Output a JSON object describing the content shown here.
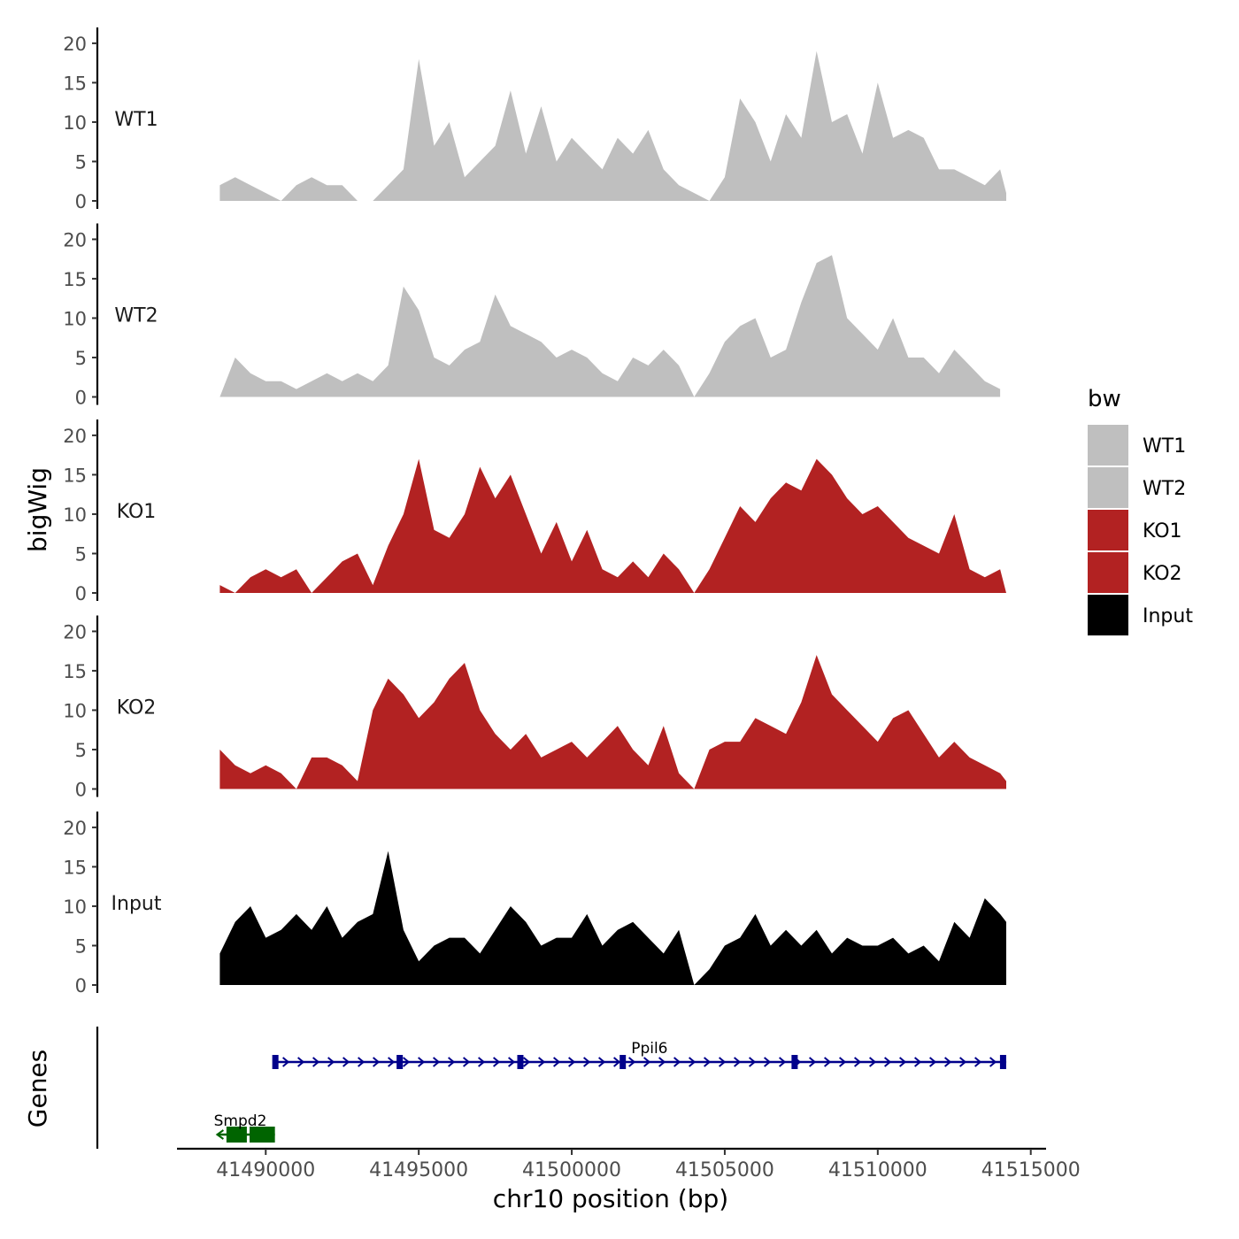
{
  "chart_data": {
    "type": "area",
    "ylabel": "bigWig",
    "xlabel": "chr10 position (bp)",
    "gene_track_label": "Genes",
    "xlim": [
      41487100,
      41515500
    ],
    "ylim": [
      0,
      21
    ],
    "y_ticks": [
      0,
      5,
      10,
      15,
      20
    ],
    "x_ticks": [
      41490000,
      41495000,
      41500000,
      41505000,
      41510000,
      41515000
    ],
    "x_tick_labels": [
      "41490000",
      "41495000",
      "41500000",
      "41505000",
      "41510000",
      "41515000"
    ],
    "legend": {
      "title": "bw",
      "position": "right",
      "entries": [
        {
          "label": "WT1",
          "color": "#bfbfbf"
        },
        {
          "label": "WT2",
          "color": "#bfbfbf"
        },
        {
          "label": "KO1",
          "color": "#b22222"
        },
        {
          "label": "KO2",
          "color": "#b22222"
        },
        {
          "label": "Input",
          "color": "#000000"
        }
      ]
    },
    "series": [
      {
        "name": "WT1",
        "color": "#bfbfbf",
        "x": [
          41488500,
          41489000,
          41489500,
          41490000,
          41490500,
          41491000,
          41491500,
          41492000,
          41492500,
          41493000,
          41493500,
          41494000,
          41494500,
          41495000,
          41495500,
          41496000,
          41496500,
          41497000,
          41497500,
          41498000,
          41498500,
          41499000,
          41499500,
          41500000,
          41500500,
          41501000,
          41501500,
          41502000,
          41502500,
          41503000,
          41503500,
          41504000,
          41504500,
          41505000,
          41505500,
          41506000,
          41506500,
          41507000,
          41507500,
          41508000,
          41508500,
          41509000,
          41509500,
          41510000,
          41510500,
          41511000,
          41511500,
          41512000,
          41512500,
          41513000,
          41513500,
          41514000,
          41514200
        ],
        "values": [
          2,
          3,
          2,
          1,
          0,
          2,
          3,
          2,
          2,
          0,
          0,
          2,
          4,
          18,
          7,
          10,
          3,
          5,
          7,
          14,
          6,
          12,
          5,
          8,
          6,
          4,
          8,
          6,
          9,
          4,
          2,
          1,
          0,
          3,
          13,
          10,
          5,
          11,
          8,
          19,
          10,
          11,
          6,
          15,
          8,
          9,
          8,
          4,
          4,
          3,
          2,
          4,
          1
        ]
      },
      {
        "name": "WT2",
        "color": "#bfbfbf",
        "x": [
          41488500,
          41489000,
          41489500,
          41490000,
          41490500,
          41491000,
          41491500,
          41492000,
          41492500,
          41493000,
          41493500,
          41494000,
          41494500,
          41495000,
          41495500,
          41496000,
          41496500,
          41497000,
          41497500,
          41498000,
          41498500,
          41499000,
          41499500,
          41500000,
          41500500,
          41501000,
          41501500,
          41502000,
          41502500,
          41503000,
          41503500,
          41504000,
          41504500,
          41505000,
          41505500,
          41506000,
          41506500,
          41507000,
          41507500,
          41508000,
          41508500,
          41509000,
          41509500,
          41510000,
          41510500,
          41511000,
          41511500,
          41512000,
          41512500,
          41513000,
          41513500,
          41514000
        ],
        "values": [
          0,
          5,
          3,
          2,
          2,
          1,
          2,
          3,
          2,
          3,
          2,
          4,
          14,
          11,
          5,
          4,
          6,
          7,
          13,
          9,
          8,
          7,
          5,
          6,
          5,
          3,
          2,
          5,
          4,
          6,
          4,
          0,
          3,
          7,
          9,
          10,
          5,
          6,
          12,
          17,
          18,
          10,
          8,
          6,
          10,
          5,
          5,
          3,
          6,
          4,
          2,
          1
        ]
      },
      {
        "name": "KO1",
        "color": "#b22222",
        "x": [
          41488500,
          41489000,
          41489500,
          41490000,
          41490500,
          41491000,
          41491500,
          41492000,
          41492500,
          41493000,
          41493500,
          41494000,
          41494500,
          41495000,
          41495500,
          41496000,
          41496500,
          41497000,
          41497500,
          41498000,
          41498500,
          41499000,
          41499500,
          41500000,
          41500500,
          41501000,
          41501500,
          41502000,
          41502500,
          41503000,
          41503500,
          41504000,
          41504500,
          41505000,
          41505500,
          41506000,
          41506500,
          41507000,
          41507500,
          41508000,
          41508500,
          41509000,
          41509500,
          41510000,
          41510500,
          41511000,
          41511500,
          41512000,
          41512500,
          41513000,
          41513500,
          41514000,
          41514200
        ],
        "values": [
          1,
          0,
          2,
          3,
          2,
          3,
          0,
          2,
          4,
          5,
          1,
          6,
          10,
          17,
          8,
          7,
          10,
          16,
          12,
          15,
          10,
          5,
          9,
          4,
          8,
          3,
          2,
          4,
          2,
          5,
          3,
          0,
          3,
          7,
          11,
          9,
          12,
          14,
          13,
          17,
          15,
          12,
          10,
          11,
          9,
          7,
          6,
          5,
          10,
          3,
          2,
          3,
          0
        ]
      },
      {
        "name": "KO2",
        "color": "#b22222",
        "x": [
          41488500,
          41489000,
          41489500,
          41490000,
          41490500,
          41491000,
          41491500,
          41492000,
          41492500,
          41493000,
          41493500,
          41494000,
          41494500,
          41495000,
          41495500,
          41496000,
          41496500,
          41497000,
          41497500,
          41498000,
          41498500,
          41499000,
          41499500,
          41500000,
          41500500,
          41501000,
          41501500,
          41502000,
          41502500,
          41503000,
          41503500,
          41504000,
          41504500,
          41505000,
          41505500,
          41506000,
          41506500,
          41507000,
          41507500,
          41508000,
          41508500,
          41509000,
          41509500,
          41510000,
          41510500,
          41511000,
          41511500,
          41512000,
          41512500,
          41513000,
          41513500,
          41514000,
          41514200
        ],
        "values": [
          5,
          3,
          2,
          3,
          2,
          0,
          4,
          4,
          3,
          1,
          10,
          14,
          12,
          9,
          11,
          14,
          16,
          10,
          7,
          5,
          7,
          4,
          5,
          6,
          4,
          6,
          8,
          5,
          3,
          8,
          2,
          0,
          5,
          6,
          6,
          9,
          8,
          7,
          11,
          17,
          12,
          10,
          8,
          6,
          9,
          10,
          7,
          4,
          6,
          4,
          3,
          2,
          1
        ]
      },
      {
        "name": "Input",
        "color": "#000000",
        "x": [
          41488500,
          41489000,
          41489500,
          41490000,
          41490500,
          41491000,
          41491500,
          41492000,
          41492500,
          41493000,
          41493500,
          41494000,
          41494500,
          41495000,
          41495500,
          41496000,
          41496500,
          41497000,
          41497500,
          41498000,
          41498500,
          41499000,
          41499500,
          41500000,
          41500500,
          41501000,
          41501500,
          41502000,
          41502500,
          41503000,
          41503500,
          41504000,
          41504500,
          41505000,
          41505500,
          41506000,
          41506500,
          41507000,
          41507500,
          41508000,
          41508500,
          41509000,
          41509500,
          41510000,
          41510500,
          41511000,
          41511500,
          41512000,
          41512500,
          41513000,
          41513500,
          41514000,
          41514200
        ],
        "values": [
          4,
          8,
          10,
          6,
          7,
          9,
          7,
          10,
          6,
          8,
          9,
          17,
          7,
          3,
          5,
          6,
          6,
          4,
          7,
          10,
          8,
          5,
          6,
          6,
          9,
          5,
          7,
          8,
          6,
          4,
          7,
          0,
          2,
          5,
          6,
          9,
          5,
          7,
          5,
          7,
          4,
          6,
          5,
          5,
          6,
          4,
          5,
          3,
          8,
          6,
          11,
          9,
          8
        ]
      }
    ],
    "genes": [
      {
        "name": "Smpd2",
        "strand": "-",
        "start": 41488500,
        "end": 41490300,
        "color": "#006400"
      },
      {
        "name": "Ppil6",
        "strand": "+",
        "start": 41490300,
        "end": 41514200,
        "color": "#00008b"
      }
    ]
  }
}
